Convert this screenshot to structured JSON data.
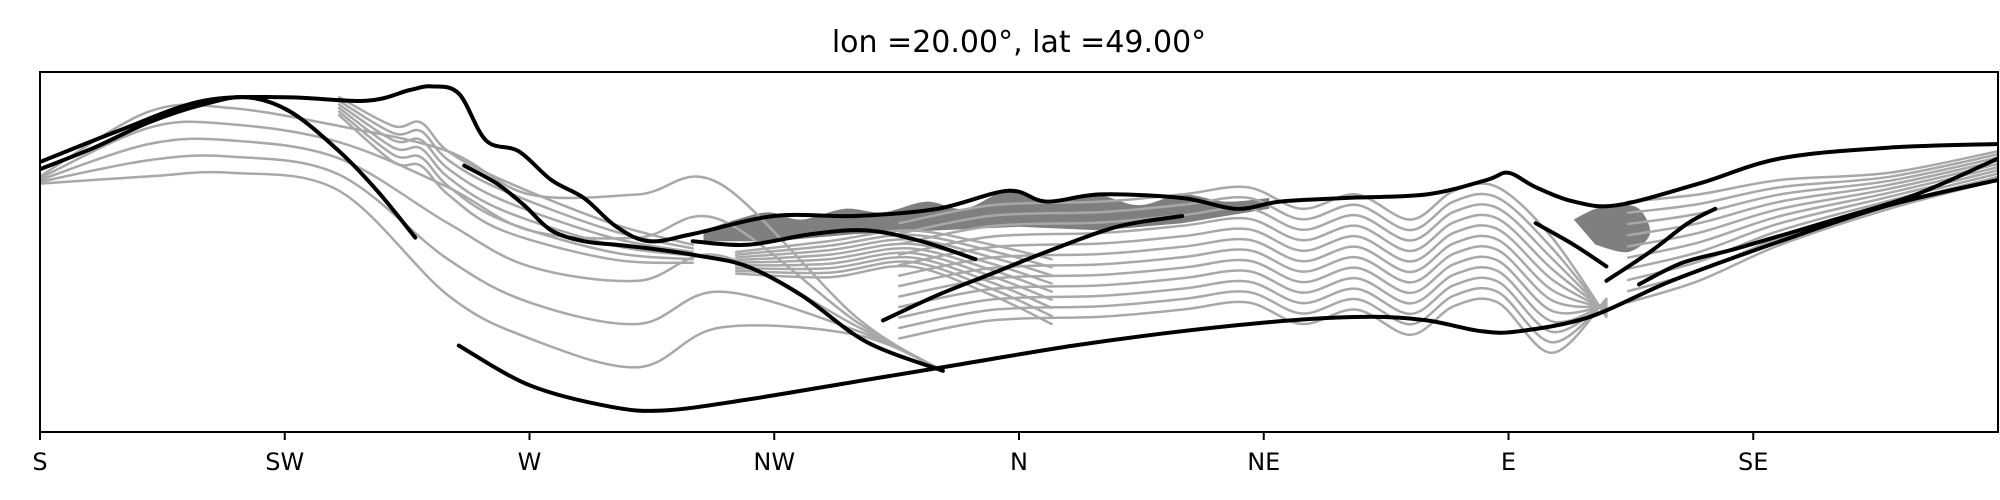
{
  "chart_data": {
    "type": "line",
    "title": "lon =20.00°, lat =49.00°",
    "xlabel": "",
    "ylabel": "",
    "categories": [
      "S",
      "SW",
      "W",
      "NW",
      "N",
      "NE",
      "E",
      "SE"
    ],
    "x_tick_values": [
      0,
      45,
      90,
      135,
      180,
      225,
      270,
      315
    ],
    "xlim": [
      0,
      360
    ],
    "ylim": [
      0,
      1
    ],
    "y_ticks_visible": false,
    "grid": false,
    "legend": "none",
    "colors": {
      "ridge_line": "#000000",
      "hidden_contour": "#a8a8a8",
      "distant_fill": "#7f7f7f",
      "background": "#ffffff"
    },
    "series": [
      {
        "values": [
          [
            0,
            0.75
          ],
          [
            15,
            0.84
          ],
          [
            30,
            0.92
          ],
          [
            45,
            0.93
          ],
          [
            60,
            0.92
          ],
          [
            68,
            0.95
          ],
          [
            72,
            0.96
          ],
          [
            77,
            0.94
          ],
          [
            82,
            0.81
          ],
          [
            88,
            0.78
          ],
          [
            94,
            0.7
          ],
          [
            100,
            0.65
          ],
          [
            106,
            0.57
          ],
          [
            112,
            0.53
          ],
          [
            120,
            0.55
          ],
          [
            135,
            0.6
          ],
          [
            150,
            0.6
          ],
          [
            165,
            0.62
          ],
          [
            178,
            0.67
          ],
          [
            185,
            0.64
          ],
          [
            195,
            0.66
          ],
          [
            210,
            0.65
          ],
          [
            220,
            0.62
          ],
          [
            228,
            0.64
          ],
          [
            240,
            0.65
          ],
          [
            255,
            0.66
          ],
          [
            266,
            0.7
          ],
          [
            270,
            0.72
          ],
          [
            275,
            0.68
          ],
          [
            282,
            0.64
          ],
          [
            290,
            0.63
          ],
          [
            305,
            0.69
          ],
          [
            320,
            0.76
          ],
          [
            340,
            0.79
          ],
          [
            360,
            0.8
          ]
        ]
      },
      {
        "values": [
          [
            0,
            0.73
          ],
          [
            10,
            0.79
          ],
          [
            20,
            0.86
          ],
          [
            30,
            0.91
          ],
          [
            38,
            0.93
          ],
          [
            46,
            0.89
          ],
          [
            55,
            0.78
          ],
          [
            62,
            0.67
          ],
          [
            69,
            0.54
          ]
        ]
      },
      {
        "values": [
          [
            78,
            0.74
          ],
          [
            84,
            0.69
          ],
          [
            89,
            0.63
          ],
          [
            94,
            0.56
          ],
          [
            100,
            0.53
          ],
          [
            106,
            0.52
          ],
          [
            112,
            0.51
          ],
          [
            121,
            0.49
          ],
          [
            130,
            0.46
          ],
          [
            140,
            0.38
          ],
          [
            152,
            0.25
          ],
          [
            166,
            0.17
          ]
        ]
      },
      {
        "values": [
          [
            77,
            0.24
          ],
          [
            90,
            0.13
          ],
          [
            105,
            0.07
          ],
          [
            115,
            0.06
          ],
          [
            130,
            0.09
          ],
          [
            150,
            0.14
          ],
          [
            170,
            0.19
          ],
          [
            190,
            0.24
          ],
          [
            210,
            0.28
          ],
          [
            230,
            0.31
          ],
          [
            245,
            0.32
          ],
          [
            255,
            0.31
          ],
          [
            265,
            0.28
          ],
          [
            272,
            0.28
          ],
          [
            285,
            0.32
          ],
          [
            300,
            0.42
          ],
          [
            320,
            0.53
          ],
          [
            340,
            0.63
          ],
          [
            360,
            0.7
          ]
        ]
      },
      {
        "values": [
          [
            155,
            0.31
          ],
          [
            165,
            0.38
          ],
          [
            175,
            0.44
          ],
          [
            185,
            0.5
          ],
          [
            198,
            0.57
          ],
          [
            210,
            0.6
          ]
        ]
      },
      {
        "values": [
          [
            120,
            0.53
          ],
          [
            130,
            0.52
          ],
          [
            142,
            0.55
          ],
          [
            152,
            0.56
          ],
          [
            162,
            0.53
          ],
          [
            172,
            0.48
          ]
        ]
      },
      {
        "values": [
          [
            294,
            0.41
          ],
          [
            302,
            0.47
          ],
          [
            312,
            0.51
          ],
          [
            330,
            0.59
          ],
          [
            345,
            0.66
          ],
          [
            360,
            0.76
          ]
        ]
      },
      {
        "values": [
          [
            275,
            0.58
          ],
          [
            282,
            0.52
          ],
          [
            288,
            0.46
          ]
        ]
      },
      {
        "values": [
          [
            288,
            0.42
          ],
          [
            296,
            0.5
          ],
          [
            303,
            0.58
          ],
          [
            308,
            0.62
          ]
        ]
      }
    ]
  }
}
